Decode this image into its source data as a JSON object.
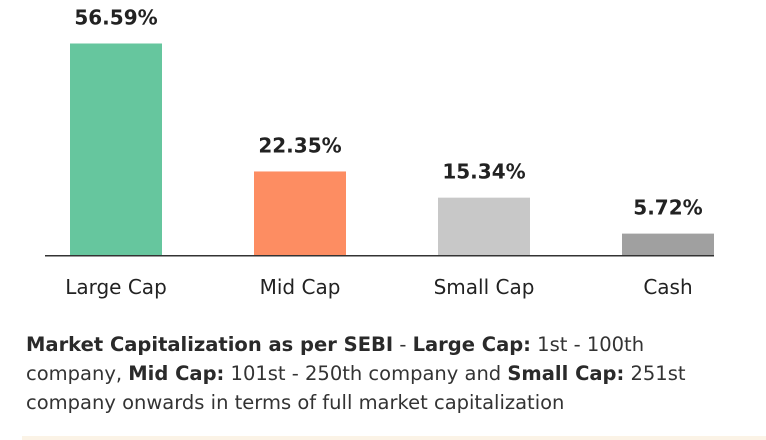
{
  "chart_data": {
    "type": "bar",
    "categories": [
      "Large Cap",
      "Mid Cap",
      "Small Cap",
      "Cash"
    ],
    "values": [
      56.59,
      22.35,
      15.34,
      5.72
    ],
    "value_labels": [
      "56.59%",
      "22.35%",
      "15.34%",
      "5.72%"
    ],
    "colors": [
      "#66c69e",
      "#fd8d62",
      "#c8c8c8",
      "#a0a0a0"
    ],
    "ylim": [
      0,
      60
    ],
    "axis_color": "#333333",
    "grid": false,
    "legend": "none"
  },
  "note": {
    "title": "Market Capitalization as per SEBI",
    "sep1": " - ",
    "large_label": "Large Cap:",
    "large_text": " 1st - 100th company, ",
    "mid_label": "Mid Cap:",
    "mid_text": " 101st - 250th company and ",
    "small_label": "Small Cap:",
    "small_text": " 251st company onwards in terms of full market capitalization"
  }
}
